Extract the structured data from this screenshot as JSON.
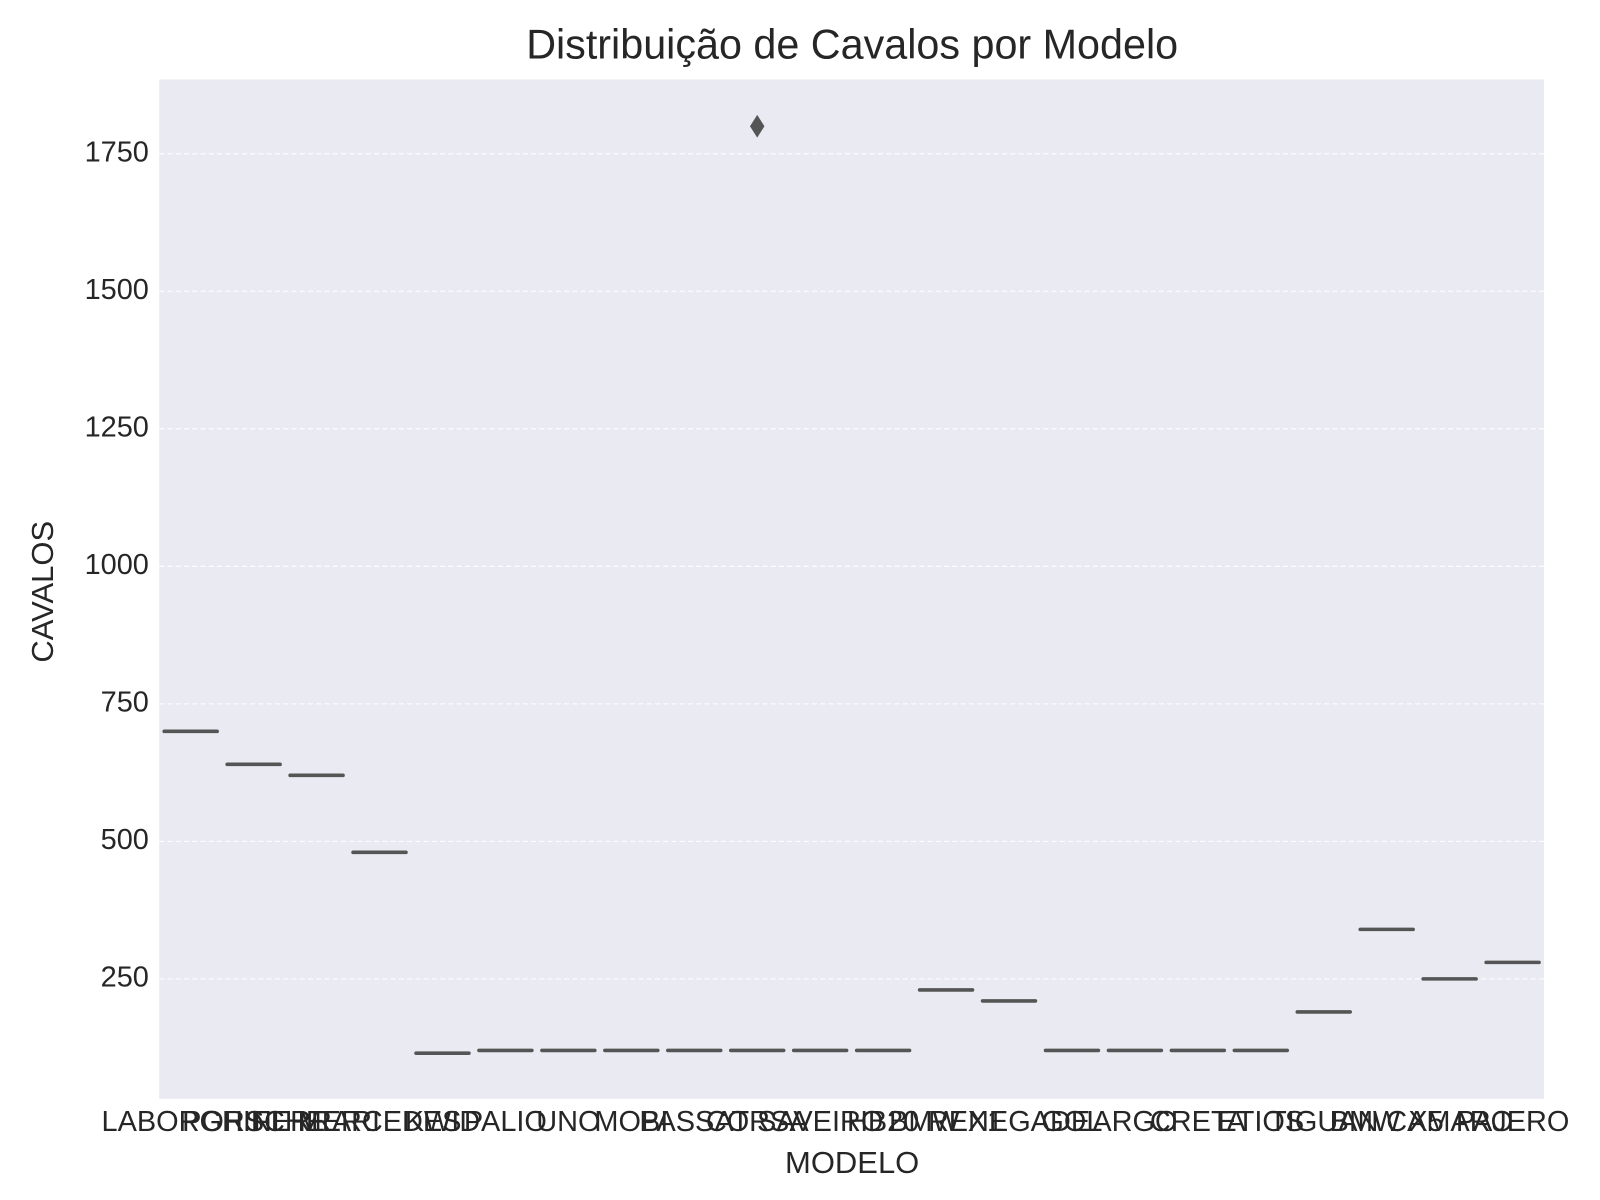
{
  "chart_data": {
    "type": "box",
    "title": "Distribuição de Cavalos por Modelo",
    "xlabel": "MODELO",
    "ylabel": "CAVALOS",
    "categories": [
      "LABORGHINI",
      "PORSCHE",
      "FERRARI",
      "MERCEDES",
      "KWID",
      "PALIO",
      "UNO",
      "MOBI",
      "PASSAT",
      "CORSA",
      "SAVEIRO",
      "HB20",
      "BMW X1",
      "RENEGADE",
      "GOL",
      "ARGO",
      "CRETA",
      "ETIOS",
      "TIGUAN",
      "BMW X5",
      "CAMARO",
      "PAJERO"
    ],
    "medians": [
      700,
      640,
      620,
      480,
      115,
      120,
      120,
      120,
      120,
      120,
      120,
      120,
      230,
      210,
      120,
      120,
      120,
      120,
      190,
      340,
      250,
      280
    ],
    "outliers": [
      [],
      [],
      [],
      [],
      [],
      [],
      [],
      [],
      [],
      [
        1800
      ],
      [],
      [],
      [],
      [],
      [],
      [],
      [],
      [],
      [],
      [],
      [],
      []
    ],
    "color": "#555555",
    "ylim": [
      32,
      1885
    ],
    "yticks": [
      250,
      500,
      750,
      1000,
      1250,
      1500,
      1750
    ],
    "grid": true
  }
}
